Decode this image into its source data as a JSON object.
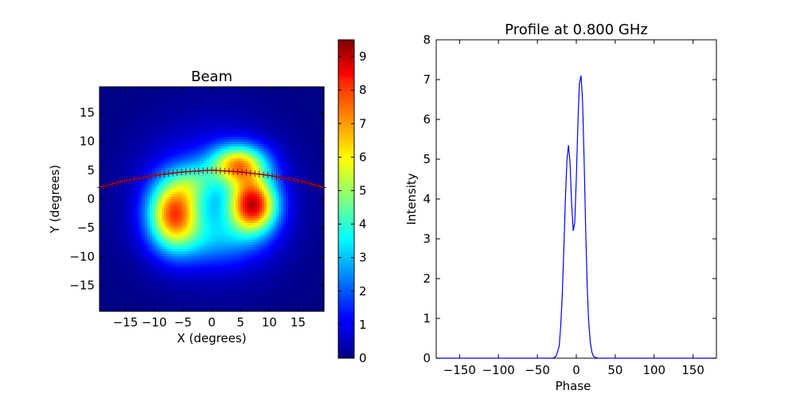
{
  "chart_data": [
    {
      "type": "heatmap",
      "title": "Beam",
      "xlabel": "X (degrees)",
      "ylabel": "Y (degrees)",
      "xlim": [
        -19.5,
        19.5
      ],
      "ylim": [
        -19.5,
        19.5
      ],
      "xticks": [
        -15,
        -10,
        -5,
        0,
        5,
        10,
        15
      ],
      "yticks": [
        -15,
        -10,
        -5,
        0,
        5,
        10,
        15
      ],
      "colormap": "jet",
      "colorbar": {
        "range": [
          0,
          9.5
        ],
        "ticks": [
          0,
          1,
          2,
          3,
          4,
          5,
          6,
          7,
          8,
          9
        ]
      },
      "overlay_track": {
        "color": "#cc0000",
        "marker": "+",
        "points": [
          [
            -19.5,
            2.0
          ],
          [
            -15,
            3.2
          ],
          [
            -10,
            4.1
          ],
          [
            -5,
            4.7
          ],
          [
            0,
            5.0
          ],
          [
            5,
            4.7
          ],
          [
            10,
            4.1
          ],
          [
            15,
            3.2
          ],
          [
            19.5,
            2.0
          ]
        ]
      },
      "lobes": [
        {
          "x": 7.2,
          "y": -1.0,
          "sx": 2.9,
          "sy": 3.3,
          "amp": 7.6
        },
        {
          "x": 4.6,
          "y": 6.0,
          "sx": 3.4,
          "sy": 2.4,
          "amp": 5.6
        },
        {
          "x": -6.6,
          "y": -2.6,
          "sx": 3.1,
          "sy": 4.2,
          "amp": 6.4
        },
        {
          "x": -3.0,
          "y": 3.0,
          "sx": 2.8,
          "sy": 2.5,
          "amp": 1.8
        },
        {
          "x": 1.0,
          "y": -7.0,
          "sx": 5.5,
          "sy": 3.2,
          "amp": 1.6
        },
        {
          "x": 0.0,
          "y": 0.0,
          "sx": 9.0,
          "sy": 9.0,
          "amp": 1.6
        }
      ]
    },
    {
      "type": "line",
      "title": "Profile at 0.800 GHz",
      "xlabel": "Phase",
      "ylabel": "Intensity",
      "xlim": [
        -180,
        180
      ],
      "ylim": [
        0,
        8
      ],
      "xticks": [
        -150,
        -100,
        -50,
        0,
        50,
        100,
        150
      ],
      "yticks": [
        0,
        1,
        2,
        3,
        4,
        5,
        6,
        7,
        8
      ],
      "line_color": "#0000ff",
      "series": [
        {
          "x": [
            -180,
            -30,
            -26,
            -22,
            -20,
            -18,
            -16,
            -14,
            -12,
            -10,
            -8,
            -6,
            -4,
            -2,
            0,
            2,
            4,
            6,
            8,
            10,
            12,
            14,
            16,
            18,
            20,
            22,
            24,
            28,
            180
          ],
          "y": [
            0,
            0,
            0.05,
            0.3,
            0.8,
            1.6,
            2.8,
            4.0,
            5.0,
            5.35,
            4.9,
            3.9,
            3.2,
            3.4,
            4.5,
            5.9,
            6.9,
            7.1,
            6.5,
            5.0,
            3.3,
            1.8,
            0.9,
            0.4,
            0.15,
            0.05,
            0.02,
            0,
            0
          ]
        }
      ]
    }
  ]
}
